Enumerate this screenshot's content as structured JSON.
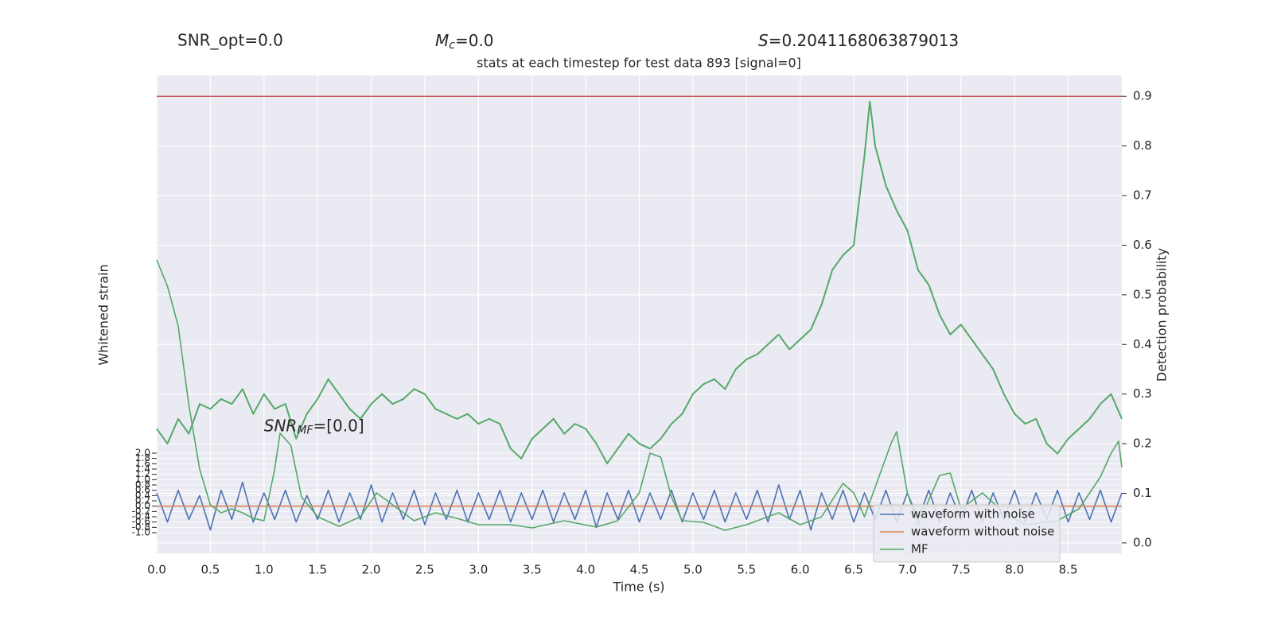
{
  "chart_data": {
    "type": "line",
    "title": "stats at each timestep for test data 893 [signal=0]",
    "stats": [
      {
        "text": "SNR_opt=0.0"
      },
      {
        "symbol": "M",
        "subscript": "c",
        "text": "=0.0"
      },
      {
        "symbol": "S",
        "text": "=0.2041168063879013"
      }
    ],
    "annotation": {
      "symbol": "SNR",
      "subscript": "MF",
      "text": "=[0.0]",
      "x": 1.0,
      "y": 3.0
    },
    "xlabel": "Time (s)",
    "ylabel": "Whitened strain",
    "y2label": "Detection probability",
    "xlim": [
      0,
      9.0
    ],
    "ylim": [
      -1.78,
      16.25
    ],
    "y2lim": [
      -0.021,
      0.942
    ],
    "xticks": [
      {
        "value": 0,
        "label": "0.0"
      },
      {
        "value": 0.5,
        "label": "0.5"
      },
      {
        "value": 1,
        "label": "1.0"
      },
      {
        "value": 1.5,
        "label": "1.5"
      },
      {
        "value": 2,
        "label": "2.0"
      },
      {
        "value": 2.5,
        "label": "2.5"
      },
      {
        "value": 3,
        "label": "3.0"
      },
      {
        "value": 3.5,
        "label": "3.5"
      },
      {
        "value": 4,
        "label": "4.0"
      },
      {
        "value": 4.5,
        "label": "4.5"
      },
      {
        "value": 5,
        "label": "5.0"
      },
      {
        "value": 5.5,
        "label": "5.5"
      },
      {
        "value": 6,
        "label": "6.0"
      },
      {
        "value": 6.5,
        "label": "6.5"
      },
      {
        "value": 7,
        "label": "7.0"
      },
      {
        "value": 7.5,
        "label": "7.5"
      },
      {
        "value": 8,
        "label": "8.0"
      },
      {
        "value": 8.5,
        "label": "8.5"
      }
    ],
    "yticks": [
      {
        "value": -1,
        "label": "-1.0"
      },
      {
        "value": -0.8,
        "label": "-0.8"
      },
      {
        "value": -0.6,
        "label": "-0.6"
      },
      {
        "value": -0.4,
        "label": "-0.4"
      },
      {
        "value": -0.2,
        "label": "-0.2"
      },
      {
        "value": 0,
        "label": "0.0"
      },
      {
        "value": 0.2,
        "label": "0.2"
      },
      {
        "value": 0.4,
        "label": "0.4"
      },
      {
        "value": 0.6,
        "label": "0.6"
      },
      {
        "value": 0.8,
        "label": "0.8"
      },
      {
        "value": 1,
        "label": "1.0"
      },
      {
        "value": 1.2,
        "label": "1.2"
      },
      {
        "value": 1.4,
        "label": "1.4"
      },
      {
        "value": 1.6,
        "label": "1.6"
      },
      {
        "value": 1.8,
        "label": "1.8"
      },
      {
        "value": 2,
        "label": "2.0"
      }
    ],
    "y2ticks": [
      {
        "value": 0,
        "label": "0.0"
      },
      {
        "value": 0.1,
        "label": "0.1"
      },
      {
        "value": 0.2,
        "label": "0.2"
      },
      {
        "value": 0.3,
        "label": "0.3"
      },
      {
        "value": 0.4,
        "label": "0.4"
      },
      {
        "value": 0.5,
        "label": "0.5"
      },
      {
        "value": 0.6,
        "label": "0.6"
      },
      {
        "value": 0.7,
        "label": "0.7"
      },
      {
        "value": 0.8,
        "label": "0.8"
      },
      {
        "value": 0.9,
        "label": "0.9"
      }
    ],
    "grid": true,
    "legend": "lower right",
    "hline": {
      "value": 0.9,
      "axis": "y2",
      "color": "#c44e52"
    },
    "series": [
      {
        "name": "waveform with noise",
        "color": "#4c72b0",
        "x": [
          0,
          0.1,
          0.2,
          0.3,
          0.4,
          0.5,
          0.6,
          0.7,
          0.8,
          0.9,
          1,
          1.1,
          1.2,
          1.3,
          1.4,
          1.5,
          1.6,
          1.7,
          1.8,
          1.9,
          2,
          2.1,
          2.2,
          2.3,
          2.4,
          2.5,
          2.6,
          2.7,
          2.8,
          2.9,
          3,
          3.1,
          3.2,
          3.3,
          3.4,
          3.5,
          3.6,
          3.7,
          3.8,
          3.9,
          4,
          4.1,
          4.2,
          4.3,
          4.4,
          4.5,
          4.6,
          4.7,
          4.8,
          4.9,
          5,
          5.1,
          5.2,
          5.3,
          5.4,
          5.5,
          5.6,
          5.7,
          5.8,
          5.9,
          6,
          6.1,
          6.2,
          6.3,
          6.4,
          6.5,
          6.6,
          6.7,
          6.8,
          6.9,
          7,
          7.1,
          7.2,
          7.3,
          7.4,
          7.5,
          7.6,
          7.7,
          7.8,
          7.9,
          8,
          8.1,
          8.2,
          8.3,
          8.4,
          8.5,
          8.6,
          8.7,
          8.8,
          8.9,
          9
        ],
        "values": [
          0.5,
          -0.6,
          0.6,
          -0.5,
          0.4,
          -0.9,
          0.6,
          -0.5,
          0.9,
          -0.6,
          0.5,
          -0.5,
          0.6,
          -0.6,
          0.4,
          -0.5,
          0.6,
          -0.6,
          0.5,
          -0.5,
          0.8,
          -0.6,
          0.5,
          -0.5,
          0.6,
          -0.7,
          0.5,
          -0.5,
          0.6,
          -0.6,
          0.5,
          -0.5,
          0.6,
          -0.6,
          0.5,
          -0.5,
          0.6,
          -0.6,
          0.5,
          -0.5,
          0.6,
          -0.8,
          0.5,
          -0.5,
          0.6,
          -0.6,
          0.5,
          -0.5,
          0.6,
          -0.6,
          0.5,
          -0.5,
          0.6,
          -0.6,
          0.5,
          -0.5,
          0.6,
          -0.6,
          0.8,
          -0.5,
          0.6,
          -0.9,
          0.5,
          -0.5,
          0.6,
          -0.6,
          0.5,
          -0.5,
          0.6,
          -0.6,
          0.5,
          -0.5,
          0.6,
          -0.6,
          0.5,
          -0.5,
          0.6,
          -0.6,
          0.5,
          -0.5,
          0.6,
          -0.6,
          0.5,
          -0.5,
          0.6,
          -0.6,
          0.5,
          -0.5,
          0.6,
          -0.6,
          0.5
        ],
        "axis": "y"
      },
      {
        "name": "waveform without noise",
        "color": "#dd8452",
        "x": [
          0,
          9.0
        ],
        "values": [
          0,
          0
        ],
        "axis": "y"
      },
      {
        "name": "MF",
        "color": "#55a868",
        "x": [
          0,
          0.1,
          0.2,
          0.3,
          0.4,
          0.5,
          0.6,
          0.7,
          0.8,
          0.9,
          1.0,
          1.1,
          1.15,
          1.25,
          1.35,
          1.5,
          1.7,
          1.9,
          2.05,
          2.2,
          2.4,
          2.6,
          2.8,
          3.0,
          3.3,
          3.5,
          3.8,
          4.1,
          4.3,
          4.5,
          4.6,
          4.7,
          4.8,
          4.9,
          5.1,
          5.3,
          5.5,
          5.8,
          6.0,
          6.2,
          6.4,
          6.5,
          6.6,
          6.85,
          6.9,
          7.0,
          7.1,
          7.3,
          7.4,
          7.5,
          7.7,
          7.9,
          8.1,
          8.4,
          8.6,
          8.8,
          8.9,
          8.97,
          9.0
        ],
        "values": [
          9.29,
          8.3,
          6.8,
          3.8,
          1.4,
          0.05,
          -0.25,
          -0.1,
          -0.25,
          -0.46,
          -0.55,
          1.4,
          2.75,
          2.3,
          0.35,
          -0.4,
          -0.76,
          -0.4,
          0.5,
          0.05,
          -0.55,
          -0.25,
          -0.46,
          -0.7,
          -0.7,
          -0.82,
          -0.55,
          -0.79,
          -0.55,
          0.5,
          2.0,
          1.85,
          0.35,
          -0.55,
          -0.61,
          -0.91,
          -0.7,
          -0.25,
          -0.7,
          -0.4,
          0.86,
          0.5,
          -0.4,
          2.39,
          2.81,
          0.5,
          -0.7,
          1.16,
          1.25,
          -0.1,
          0.5,
          -0.25,
          -0.7,
          -0.55,
          -0.1,
          1.1,
          2.0,
          2.45,
          1.46
        ],
        "axis": "y"
      },
      {
        "color": "#55a868",
        "x": [
          0,
          0.1,
          0.2,
          0.3,
          0.4,
          0.5,
          0.6,
          0.7,
          0.8,
          0.9,
          1,
          1.1,
          1.2,
          1.3,
          1.4,
          1.5,
          1.6,
          1.7,
          1.8,
          1.9,
          2,
          2.1,
          2.2,
          2.3,
          2.4,
          2.5,
          2.6,
          2.7,
          2.8,
          2.9,
          3,
          3.1,
          3.2,
          3.3,
          3.4,
          3.5,
          3.6,
          3.7,
          3.8,
          3.9,
          4,
          4.1,
          4.2,
          4.3,
          4.4,
          4.5,
          4.6,
          4.7,
          4.8,
          4.9,
          5,
          5.1,
          5.2,
          5.3,
          5.4,
          5.5,
          5.6,
          5.7,
          5.8,
          5.9,
          6,
          6.1,
          6.2,
          6.3,
          6.4,
          6.5,
          6.6,
          6.65,
          6.7,
          6.8,
          6.9,
          7,
          7.1,
          7.2,
          7.3,
          7.4,
          7.5,
          7.6,
          7.7,
          7.8,
          7.9,
          8,
          8.1,
          8.2,
          8.3,
          8.4,
          8.5,
          8.6,
          8.7,
          8.8,
          8.9,
          9
        ],
        "values": [
          0.23,
          0.2,
          0.25,
          0.22,
          0.28,
          0.27,
          0.29,
          0.28,
          0.31,
          0.26,
          0.3,
          0.27,
          0.28,
          0.21,
          0.26,
          0.29,
          0.33,
          0.3,
          0.27,
          0.25,
          0.28,
          0.3,
          0.28,
          0.29,
          0.31,
          0.3,
          0.27,
          0.26,
          0.25,
          0.26,
          0.24,
          0.25,
          0.24,
          0.19,
          0.17,
          0.21,
          0.23,
          0.25,
          0.22,
          0.24,
          0.23,
          0.2,
          0.16,
          0.19,
          0.22,
          0.2,
          0.19,
          0.21,
          0.24,
          0.26,
          0.3,
          0.32,
          0.33,
          0.31,
          0.35,
          0.37,
          0.38,
          0.4,
          0.42,
          0.39,
          0.41,
          0.43,
          0.48,
          0.55,
          0.58,
          0.6,
          0.78,
          0.89,
          0.8,
          0.72,
          0.67,
          0.63,
          0.55,
          0.52,
          0.46,
          0.42,
          0.44,
          0.41,
          0.38,
          0.35,
          0.3,
          0.26,
          0.24,
          0.25,
          0.2,
          0.18,
          0.21,
          0.23,
          0.25,
          0.28,
          0.3,
          0.25
        ],
        "axis": "y2"
      }
    ]
  }
}
